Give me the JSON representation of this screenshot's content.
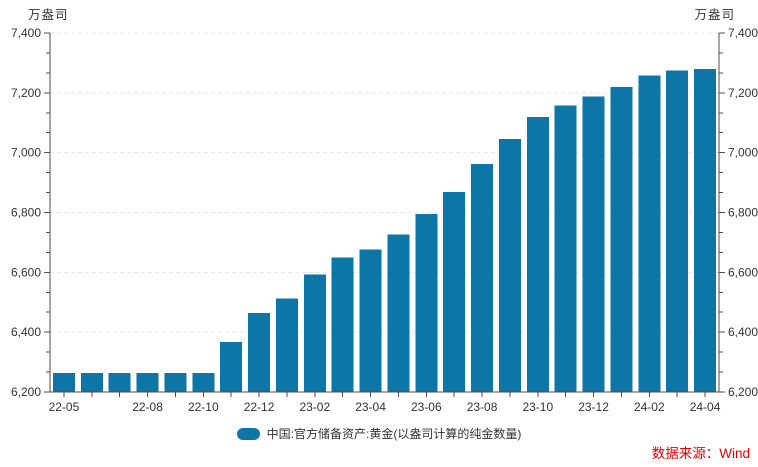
{
  "axes": {
    "unit_left": "万盎司",
    "unit_right": "万盎司"
  },
  "legend": {
    "label": "中国:官方储备资产:黄金(以盎司计算的纯金数量)",
    "swatch_color": "#0D76A6"
  },
  "footer": {
    "source": "数据来源：Wind",
    "source_color": "#E60000"
  },
  "chart_data": {
    "type": "bar",
    "title": "",
    "ylabel": "万盎司",
    "series_name": "中国:官方储备资产:黄金(以盎司计算的纯金数量)",
    "categories": [
      "22-05",
      "22-06",
      "22-07",
      "22-08",
      "22-09",
      "22-10",
      "22-11",
      "22-12",
      "23-01",
      "23-02",
      "23-03",
      "23-04",
      "23-05",
      "23-06",
      "23-07",
      "23-08",
      "23-09",
      "23-10",
      "23-11",
      "23-12",
      "24-01",
      "24-02",
      "24-03",
      "24-04"
    ],
    "values": [
      6264,
      6264,
      6264,
      6264,
      6264,
      6264,
      6367,
      6464,
      6512,
      6592,
      6650,
      6676,
      6727,
      6795,
      6869,
      6962,
      7046,
      7120,
      7158,
      7187,
      7219,
      7258,
      7274,
      7280
    ],
    "x_tick_labels_shown": [
      "22-05",
      "22-08",
      "22-10",
      "22-12",
      "23-02",
      "23-04",
      "23-06",
      "23-08",
      "23-10",
      "23-12",
      "24-02",
      "24-04"
    ],
    "ylim": [
      6200,
      7400
    ],
    "y_tick_step": 200,
    "y_tick_labels": [
      "6,200",
      "6,400",
      "6,600",
      "6,800",
      "7,000",
      "7,200",
      "7,400"
    ],
    "minor_ticks_per_interval": 2,
    "bar_color": "#0D76A6",
    "grid": "horizontal-dashed",
    "grid_color": "#e6e6e6",
    "axis_color": "#4d4d4d",
    "tick_label_color": "#333333",
    "legend_position": "bottom-center",
    "dual_y_axis": true
  }
}
